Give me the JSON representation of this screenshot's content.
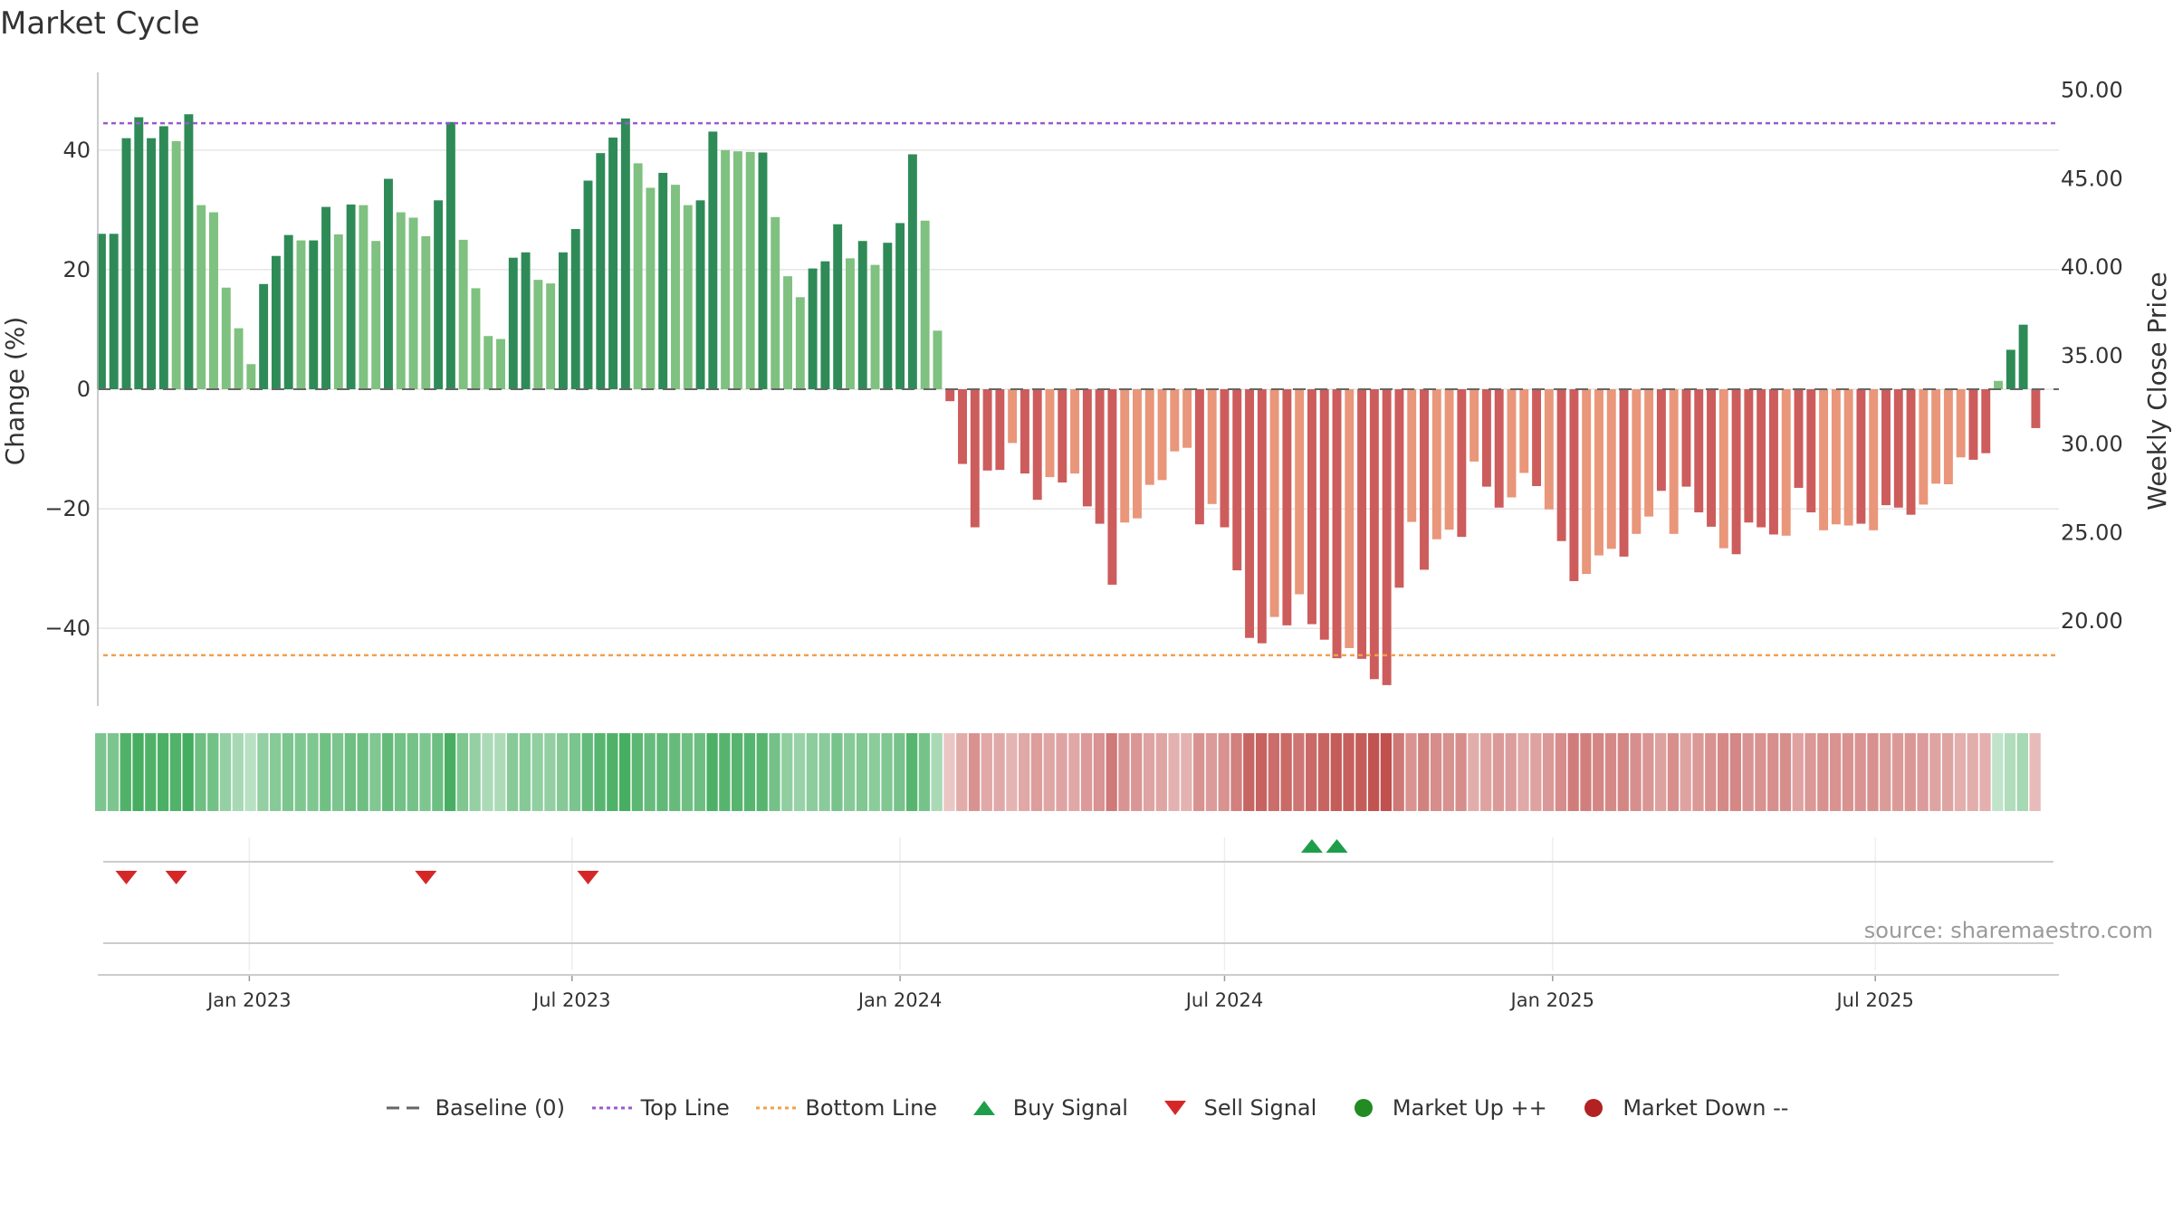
{
  "page": {
    "title": "Market Cycle",
    "source": "source: sharemaestro.com"
  },
  "colors": {
    "up_strong": "#2e8b57",
    "up_light": "#7fc180",
    "down_strong": "#cd5c5c",
    "down_light": "#e9967a",
    "top_line": "#9b59d0",
    "bottom_line": "#f0a050",
    "buy": "#1e9e4a",
    "sell": "#d62728",
    "market_up": "#228b22",
    "market_down": "#b22222",
    "grid": "#e6e6e6",
    "baseline": "#666666"
  },
  "legend": [
    {
      "key": "baseline",
      "label": "Baseline (0)"
    },
    {
      "key": "top",
      "label": "Top Line"
    },
    {
      "key": "bottom",
      "label": "Bottom Line"
    },
    {
      "key": "buy",
      "label": "Buy Signal"
    },
    {
      "key": "sell",
      "label": "Sell Signal"
    },
    {
      "key": "up",
      "label": "Market Up ++"
    },
    {
      "key": "down",
      "label": "Market Down --"
    }
  ],
  "chart_data": {
    "type": "bar",
    "title": "Market Cycle",
    "ylabel": "Change (%)",
    "y2label": "Weekly Close Price",
    "ylim": [
      -53,
      53
    ],
    "yticks": [
      40,
      20,
      0,
      -20,
      -40
    ],
    "ytick_labels": [
      "40",
      "20",
      "0",
      "−20",
      "−40"
    ],
    "y2lim": [
      15.2,
      51.0
    ],
    "y2ticks": [
      50,
      45,
      40,
      35,
      30,
      25,
      20
    ],
    "y2tick_labels": [
      "50.00",
      "45.00",
      "40.00",
      "35.00",
      "30.00",
      "25.00",
      "20.00"
    ],
    "top_line": 44.5,
    "bottom_line": -44.5,
    "x_start": "2022-10-10",
    "x_range": [
      "2022-10-08",
      "2025-10-12"
    ],
    "interval_days": 7,
    "xticks": [
      "2023-01-01",
      "2023-07-01",
      "2024-01-01",
      "2024-07-01",
      "2025-01-01",
      "2025-07-01"
    ],
    "xtick_labels": [
      "Jan 2023",
      "Jul 2023",
      "Jan 2024",
      "Jul 2024",
      "Jan 2025",
      "Jul 2025"
    ],
    "grid": true,
    "legend_position": "bottom",
    "values": [
      26,
      26,
      42,
      45.5,
      42,
      44,
      41.5,
      46,
      30.8,
      29.6,
      17,
      10.2,
      4.2,
      17.6,
      22.3,
      25.8,
      24.9,
      24.9,
      30.5,
      25.9,
      30.9,
      30.8,
      24.8,
      35.2,
      29.6,
      28.7,
      25.6,
      31.6,
      44.7,
      25,
      16.9,
      8.9,
      8.4,
      22,
      22.9,
      18.3,
      17.7,
      22.9,
      26.8,
      34.9,
      39.5,
      42.1,
      45.3,
      37.8,
      33.7,
      36.2,
      34.2,
      30.8,
      31.6,
      43.1,
      40,
      39.8,
      39.7,
      39.6,
      28.8,
      18.9,
      15.4,
      20.2,
      21.4,
      27.6,
      21.9,
      24.8,
      20.8,
      24.5,
      27.8,
      39.3,
      28.2,
      9.8,
      -2,
      -12.5,
      -23.1,
      -13.6,
      -13.5,
      -9,
      -14.1,
      -18.5,
      -14.7,
      -15.6,
      -14.1,
      -19.6,
      -22.5,
      -32.7,
      -22.3,
      -21.6,
      -16,
      -15.2,
      -10.4,
      -9.8,
      -22.6,
      -19.2,
      -23.1,
      -30.3,
      -41.6,
      -42.5,
      -38.1,
      -39.5,
      -34.3,
      -39.3,
      -41.9,
      -45,
      -43.3,
      -45.1,
      -48.5,
      -49.5,
      -33.2,
      -22.2,
      -30.2,
      -25.1,
      -23.5,
      -24.7,
      -12.1,
      -16.3,
      -19.8,
      -18.1,
      -14,
      -16.2,
      -20.1,
      -25.4,
      -32.1,
      -30.9,
      -27.8,
      -26.7,
      -28,
      -24.2,
      -21.3,
      -17,
      -24.2,
      -16.3,
      -20.6,
      -23,
      -26.6,
      -27.6,
      -22.3,
      -23.1,
      -24.3,
      -24.5,
      -16.5,
      -20.6,
      -23.6,
      -22.6,
      -22.8,
      -22.5,
      -23.6,
      -19.4,
      -19.8,
      -21,
      -19.3,
      -15.8,
      -15.9,
      -11.4,
      -11.8,
      -10.7,
      1.4,
      6.6,
      10.8,
      -6.5
    ],
    "intensity": [
      "s",
      "s",
      "s",
      "s",
      "s",
      "s",
      "l",
      "s",
      "l",
      "l",
      "l",
      "l",
      "l",
      "s",
      "s",
      "s",
      "l",
      "s",
      "s",
      "l",
      "s",
      "l",
      "l",
      "s",
      "l",
      "l",
      "l",
      "s",
      "s",
      "l",
      "l",
      "l",
      "l",
      "s",
      "s",
      "l",
      "l",
      "s",
      "s",
      "s",
      "s",
      "s",
      "s",
      "l",
      "l",
      "s",
      "l",
      "l",
      "s",
      "s",
      "l",
      "l",
      "l",
      "s",
      "l",
      "l",
      "l",
      "s",
      "s",
      "s",
      "l",
      "s",
      "l",
      "s",
      "s",
      "s",
      "l",
      "l",
      "s",
      "s",
      "s",
      "s",
      "s",
      "l",
      "s",
      "s",
      "l",
      "s",
      "l",
      "s",
      "s",
      "s",
      "l",
      "l",
      "l",
      "l",
      "l",
      "l",
      "s",
      "l",
      "s",
      "s",
      "s",
      "s",
      "l",
      "s",
      "l",
      "s",
      "s",
      "s",
      "l",
      "s",
      "s",
      "s",
      "s",
      "l",
      "s",
      "l",
      "l",
      "s",
      "l",
      "s",
      "s",
      "l",
      "l",
      "s",
      "l",
      "s",
      "s",
      "l",
      "l",
      "l",
      "s",
      "l",
      "l",
      "s",
      "l",
      "s",
      "s",
      "s",
      "l",
      "s",
      "s",
      "s",
      "s",
      "l",
      "s",
      "s",
      "l",
      "l",
      "l",
      "s",
      "l",
      "s",
      "s",
      "s",
      "l",
      "l",
      "l",
      "l",
      "s",
      "s",
      "l",
      "s",
      "s",
      "s"
    ],
    "sell_signals": [
      "2022-10-24",
      "2022-11-21",
      "2023-04-10",
      "2023-07-10"
    ],
    "buy_signals": [
      "2024-08-19",
      "2024-09-02"
    ]
  }
}
